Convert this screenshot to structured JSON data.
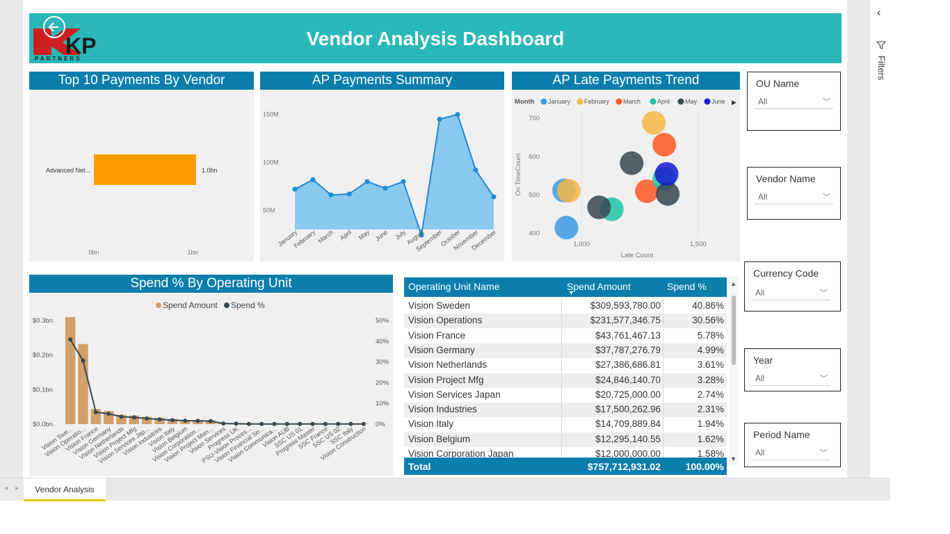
{
  "report_title": "Vendor Analysis Dashboard",
  "logo": {
    "text": "KPI",
    "subtext": "PARTNERS"
  },
  "top10": {
    "title": "Top 10 Payments By Vendor",
    "vendor_label": "Advanced Net...",
    "value_label": "1.0bn",
    "x_ticks": [
      "0bn",
      "1bn"
    ]
  },
  "summary": {
    "title": "AP Payments Summary",
    "y_ticks": [
      "150M",
      "100M",
      "50M"
    ]
  },
  "late": {
    "title": "AP Late Payments Trend",
    "legend_title": "Month",
    "legend_items": [
      {
        "name": "January",
        "color": "#3a9be3"
      },
      {
        "name": "February",
        "color": "#f7b646"
      },
      {
        "name": "March",
        "color": "#ff5722"
      },
      {
        "name": "April",
        "color": "#1ec4a8"
      },
      {
        "name": "May",
        "color": "#37474f"
      },
      {
        "name": "June",
        "color": "#1a1acc"
      }
    ],
    "x_label": "Late Count",
    "y_label": "On TimeCount",
    "x_ticks": [
      "1,000",
      "1,500"
    ],
    "y_ticks": [
      "700",
      "600",
      "500",
      "400"
    ]
  },
  "spend": {
    "title": "Spend % By Operating Unit",
    "legend_amount": "Spend Amount",
    "legend_pct": "Spend %",
    "left_ticks": [
      "$0.3bn",
      "$0.2bn",
      "$0.1bn",
      "$0.0bn"
    ],
    "right_ticks": [
      "50%",
      "40%",
      "30%",
      "20%",
      "10%",
      "0%"
    ]
  },
  "table": {
    "headers": [
      "Operating Unit Name",
      "Spend Amount",
      "Spend %"
    ],
    "rows": [
      [
        "Vision Sweden",
        "$309,593,780.00",
        "40.86%"
      ],
      [
        "Vision Operations",
        "$231,577,346.75",
        "30.56%"
      ],
      [
        "Vision France",
        "$43,761,467.13",
        "5.78%"
      ],
      [
        "Vision Germany",
        "$37,787,276.79",
        "4.99%"
      ],
      [
        "Vision Netherlands",
        "$27,386,686.81",
        "3.61%"
      ],
      [
        "Vision Project Mfg",
        "$24,846,140.70",
        "3.28%"
      ],
      [
        "Vision Services Japan",
        "$20,725,000.00",
        "2.74%"
      ],
      [
        "Vision Industries",
        "$17,500,262.96",
        "2.31%"
      ],
      [
        "Vision Italy",
        "$14,709,889.84",
        "1.94%"
      ],
      [
        "Vision Belgium",
        "$12,295,140.55",
        "1.62%"
      ],
      [
        "Vision Corporation Japan",
        "$12,000,000.00",
        "1.58%"
      ]
    ],
    "total": [
      "Total",
      "$757,712,931.02",
      "100.00%"
    ]
  },
  "slicers": [
    {
      "title": "OU Name",
      "value": "All"
    },
    {
      "title": "Vendor Name",
      "value": "All"
    },
    {
      "title": "Currency Code",
      "value": "All"
    },
    {
      "title": "Year",
      "value": "All"
    },
    {
      "title": "Period Name",
      "value": "All"
    }
  ],
  "filters_label": "Filters",
  "page_tab": "Vendor Analysis",
  "chart_data": [
    {
      "type": "bar",
      "title": "Top 10 Payments By Vendor",
      "orientation": "horizontal",
      "categories": [
        "Advanced Net..."
      ],
      "values": [
        1.0
      ],
      "unit": "bn",
      "xlim": [
        0,
        1.35
      ]
    },
    {
      "type": "area",
      "title": "AP Payments Summary",
      "categories": [
        "January",
        "February",
        "March",
        "April",
        "May",
        "June",
        "July",
        "August",
        "September",
        "October",
        "November",
        "December"
      ],
      "values": [
        72,
        82,
        66,
        67,
        80,
        73,
        80,
        24,
        145,
        150,
        92,
        64
      ],
      "unit": "M",
      "ylim": [
        30,
        170
      ]
    },
    {
      "type": "scatter",
      "title": "AP Late Payments Trend",
      "xlabel": "Late Count",
      "ylabel": "On TimeCount",
      "xlim": [
        850,
        1650
      ],
      "ylim": [
        385,
        720
      ],
      "series": [
        {
          "name": "January",
          "color": "#3a9be3",
          "points": [
            [
              935,
              415
            ],
            [
              925,
              512
            ]
          ]
        },
        {
          "name": "February",
          "color": "#f7b646",
          "points": [
            [
              945,
              511
            ],
            [
              1310,
              688
            ]
          ]
        },
        {
          "name": "March",
          "color": "#ff5722",
          "points": [
            [
              1280,
              510
            ],
            [
              1355,
              631
            ]
          ]
        },
        {
          "name": "April",
          "color": "#1ec4a8",
          "points": [
            [
              1130,
              463
            ],
            [
              1355,
              542
            ]
          ]
        },
        {
          "name": "May",
          "color": "#37474f",
          "points": [
            [
              1075,
              468
            ],
            [
              1215,
              583
            ],
            [
              1370,
              503
            ]
          ]
        },
        {
          "name": "June",
          "color": "#1a1acc",
          "points": [
            [
              1365,
              555
            ]
          ]
        }
      ]
    },
    {
      "type": "bar",
      "title": "Spend % By Operating Unit",
      "categories": [
        "Vision Swe...",
        "Vision Operatio...",
        "Vision France",
        "Vision Germany",
        "Vision Netherlands",
        "Vision Project Mfg",
        "Vision Services Jap...",
        "Vision Industries",
        "Vision Italy",
        "Vision Belgium",
        "Vision Corporation...",
        "Vision Project Man...",
        "Vision Services",
        "Progress UK",
        "PSU-Vision Proces...",
        "Vision Financial Se...",
        "Vision Communica...",
        "Vision AUB",
        "SSC US 01",
        "Progress Master",
        "SSC France",
        "SSC US 02",
        "SSC Italy",
        "Vision Construction"
      ],
      "series": [
        {
          "name": "Spend Amount",
          "axis": "left",
          "unit": "bn",
          "values": [
            0.31,
            0.232,
            0.044,
            0.038,
            0.027,
            0.025,
            0.021,
            0.018,
            0.015,
            0.012,
            0.012,
            0.011,
            0.002,
            0.001,
            0.001,
            0.001,
            0.001,
            0.001,
            0.001,
            0.001,
            0.001,
            0.001,
            0.001,
            0.001
          ]
        },
        {
          "name": "Spend %",
          "axis": "right",
          "unit": "%",
          "values": [
            40.86,
            30.56,
            5.78,
            4.99,
            3.61,
            3.28,
            2.74,
            2.31,
            1.94,
            1.62,
            1.58,
            1.45,
            0.3,
            0.2,
            0.1,
            0.1,
            0.1,
            0.1,
            0.1,
            0.1,
            0.1,
            0.1,
            0.1,
            0.1
          ]
        }
      ],
      "ylim_left": [
        0,
        0.3
      ],
      "ylim_right": [
        0,
        50
      ]
    }
  ]
}
